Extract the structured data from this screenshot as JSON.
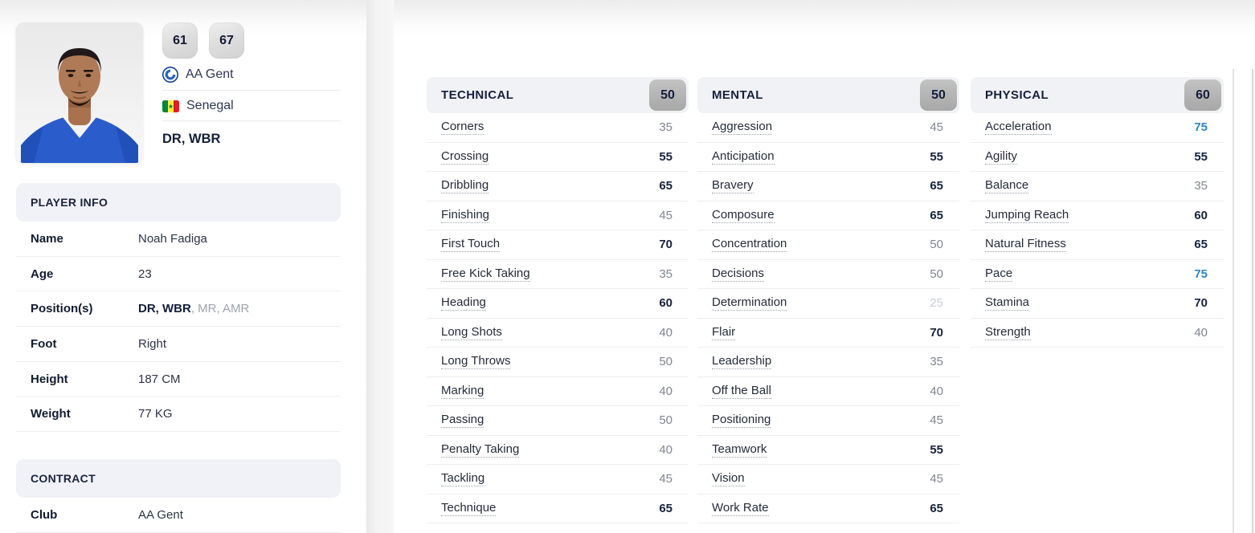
{
  "colors": {
    "accent_blue": "#2e86c5",
    "dark_navy": "#15213c",
    "header_bg": "#f1f2f6",
    "badge_gray": "#ababab",
    "value_gray": "#7f858f",
    "value_faint": "#c9cdd3"
  },
  "icons": {
    "club": "aa-gent-crest-icon",
    "nation": "senegal-flag-icon"
  },
  "player": {
    "name": "Noah Fadiga",
    "rating_current": "61",
    "rating_potential": "67",
    "club": "AA Gent",
    "nation": "Senegal",
    "main_positions": "DR, WBR"
  },
  "player_info": {
    "title": "PLAYER INFO",
    "rows": [
      {
        "label": "Name",
        "value": "Noah Fadiga"
      },
      {
        "label": "Age",
        "value": "23"
      },
      {
        "label": "Position(s)",
        "primary": "DR, WBR",
        "secondary": ", MR, AMR"
      },
      {
        "label": "Foot",
        "value": "Right"
      },
      {
        "label": "Height",
        "value": "187 CM"
      },
      {
        "label": "Weight",
        "value": "77 KG"
      }
    ]
  },
  "contract": {
    "title": "CONTRACT",
    "rows": [
      {
        "label": "Club",
        "value": "AA Gent"
      }
    ]
  },
  "attributes": {
    "columns": [
      {
        "title": "TECHNICAL",
        "average": "50",
        "rows": [
          {
            "label": "Corners",
            "value": 35
          },
          {
            "label": "Crossing",
            "value": 55
          },
          {
            "label": "Dribbling",
            "value": 65
          },
          {
            "label": "Finishing",
            "value": 45
          },
          {
            "label": "First Touch",
            "value": 70
          },
          {
            "label": "Free Kick Taking",
            "value": 35
          },
          {
            "label": "Heading",
            "value": 60
          },
          {
            "label": "Long Shots",
            "value": 40
          },
          {
            "label": "Long Throws",
            "value": 50
          },
          {
            "label": "Marking",
            "value": 40
          },
          {
            "label": "Passing",
            "value": 50
          },
          {
            "label": "Penalty Taking",
            "value": 40
          },
          {
            "label": "Tackling",
            "value": 45
          },
          {
            "label": "Technique",
            "value": 65
          }
        ]
      },
      {
        "title": "MENTAL",
        "average": "50",
        "rows": [
          {
            "label": "Aggression",
            "value": 45
          },
          {
            "label": "Anticipation",
            "value": 55
          },
          {
            "label": "Bravery",
            "value": 65
          },
          {
            "label": "Composure",
            "value": 65
          },
          {
            "label": "Concentration",
            "value": 50
          },
          {
            "label": "Decisions",
            "value": 50
          },
          {
            "label": "Determination",
            "value": 25
          },
          {
            "label": "Flair",
            "value": 70
          },
          {
            "label": "Leadership",
            "value": 35
          },
          {
            "label": "Off the Ball",
            "value": 40
          },
          {
            "label": "Positioning",
            "value": 45
          },
          {
            "label": "Teamwork",
            "value": 55
          },
          {
            "label": "Vision",
            "value": 45
          },
          {
            "label": "Work Rate",
            "value": 65
          }
        ]
      },
      {
        "title": "PHYSICAL",
        "average": "60",
        "rows": [
          {
            "label": "Acceleration",
            "value": 75
          },
          {
            "label": "Agility",
            "value": 55
          },
          {
            "label": "Balance",
            "value": 35
          },
          {
            "label": "Jumping Reach",
            "value": 60
          },
          {
            "label": "Natural Fitness",
            "value": 65
          },
          {
            "label": "Pace",
            "value": 75
          },
          {
            "label": "Stamina",
            "value": 70
          },
          {
            "label": "Strength",
            "value": 40
          }
        ]
      }
    ]
  }
}
